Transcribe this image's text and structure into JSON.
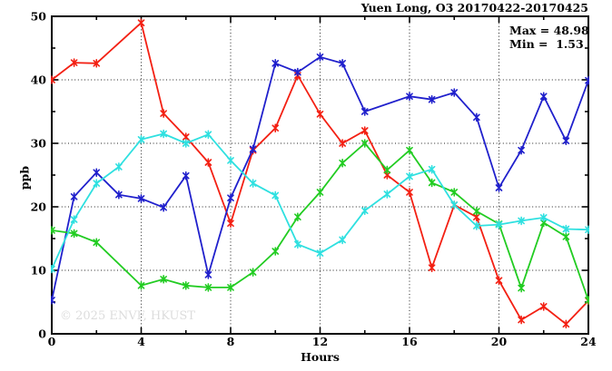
{
  "chart_data": {
    "type": "line",
    "title": "Yuen Long, O3 20170422-20170425",
    "xlabel": "Hours",
    "ylabel": "ppb",
    "x_range": [
      0,
      24
    ],
    "y_range": [
      0,
      50
    ],
    "x_major_ticks": [
      0,
      4,
      8,
      12,
      16,
      20,
      24
    ],
    "x_minor_ticks": [
      2,
      6,
      10,
      14,
      18,
      22
    ],
    "y_major_ticks": [
      0,
      10,
      20,
      30,
      40,
      50
    ],
    "y_minor_ticks": [
      5,
      15,
      25,
      35,
      45
    ],
    "grid_x": [
      4,
      8,
      12,
      16,
      20
    ],
    "grid_y": [
      10,
      20,
      30,
      40
    ],
    "hours": [
      0,
      1,
      2,
      3,
      4,
      5,
      6,
      7,
      8,
      9,
      10,
      11,
      12,
      13,
      14,
      15,
      16,
      17,
      18,
      19,
      20,
      21,
      22,
      23,
      24
    ],
    "series": [
      {
        "name": "red",
        "color": "#f32013",
        "values": [
          40.0,
          42.7,
          42.6,
          null,
          48.98,
          34.7,
          31.0,
          27.0,
          17.4,
          28.9,
          32.4,
          40.7,
          34.6,
          30.0,
          32.0,
          25.0,
          22.3,
          10.4,
          20.3,
          18.4,
          8.4,
          2.2,
          4.3,
          1.53,
          5.2
        ]
      },
      {
        "name": "blue",
        "color": "#2020cc",
        "values": [
          5.3,
          21.6,
          25.4,
          21.9,
          21.3,
          19.9,
          24.9,
          9.3,
          21.4,
          29.1,
          42.6,
          41.2,
          43.6,
          42.6,
          35.0,
          null,
          37.4,
          36.9,
          38.0,
          34.1,
          23.0,
          28.9,
          37.4,
          30.4,
          39.9
        ]
      },
      {
        "name": "green",
        "color": "#22cc22",
        "values": [
          16.3,
          15.8,
          14.4,
          null,
          7.6,
          8.6,
          7.6,
          7.3,
          7.3,
          9.7,
          13.0,
          18.4,
          22.3,
          26.9,
          30.0,
          25.8,
          28.9,
          23.8,
          22.3,
          19.3,
          17.3,
          7.2,
          17.5,
          15.3,
          5.3
        ]
      },
      {
        "name": "cyan",
        "color": "#2fe0e0",
        "values": [
          10.2,
          18.0,
          23.7,
          26.3,
          30.6,
          31.5,
          30.0,
          31.4,
          27.3,
          23.7,
          21.8,
          14.1,
          12.7,
          14.8,
          19.4,
          22.0,
          24.8,
          25.9,
          20.3,
          17.0,
          17.2,
          17.8,
          18.3,
          16.5,
          16.4
        ]
      }
    ],
    "annotations": {
      "max": "Max = 48.98",
      "min": "Min =  1.53"
    },
    "stats": {
      "max": 48.98,
      "min": 1.53
    },
    "watermark": "© 2025 ENVF, HKUST",
    "legend": "none",
    "grid": "dotted"
  }
}
